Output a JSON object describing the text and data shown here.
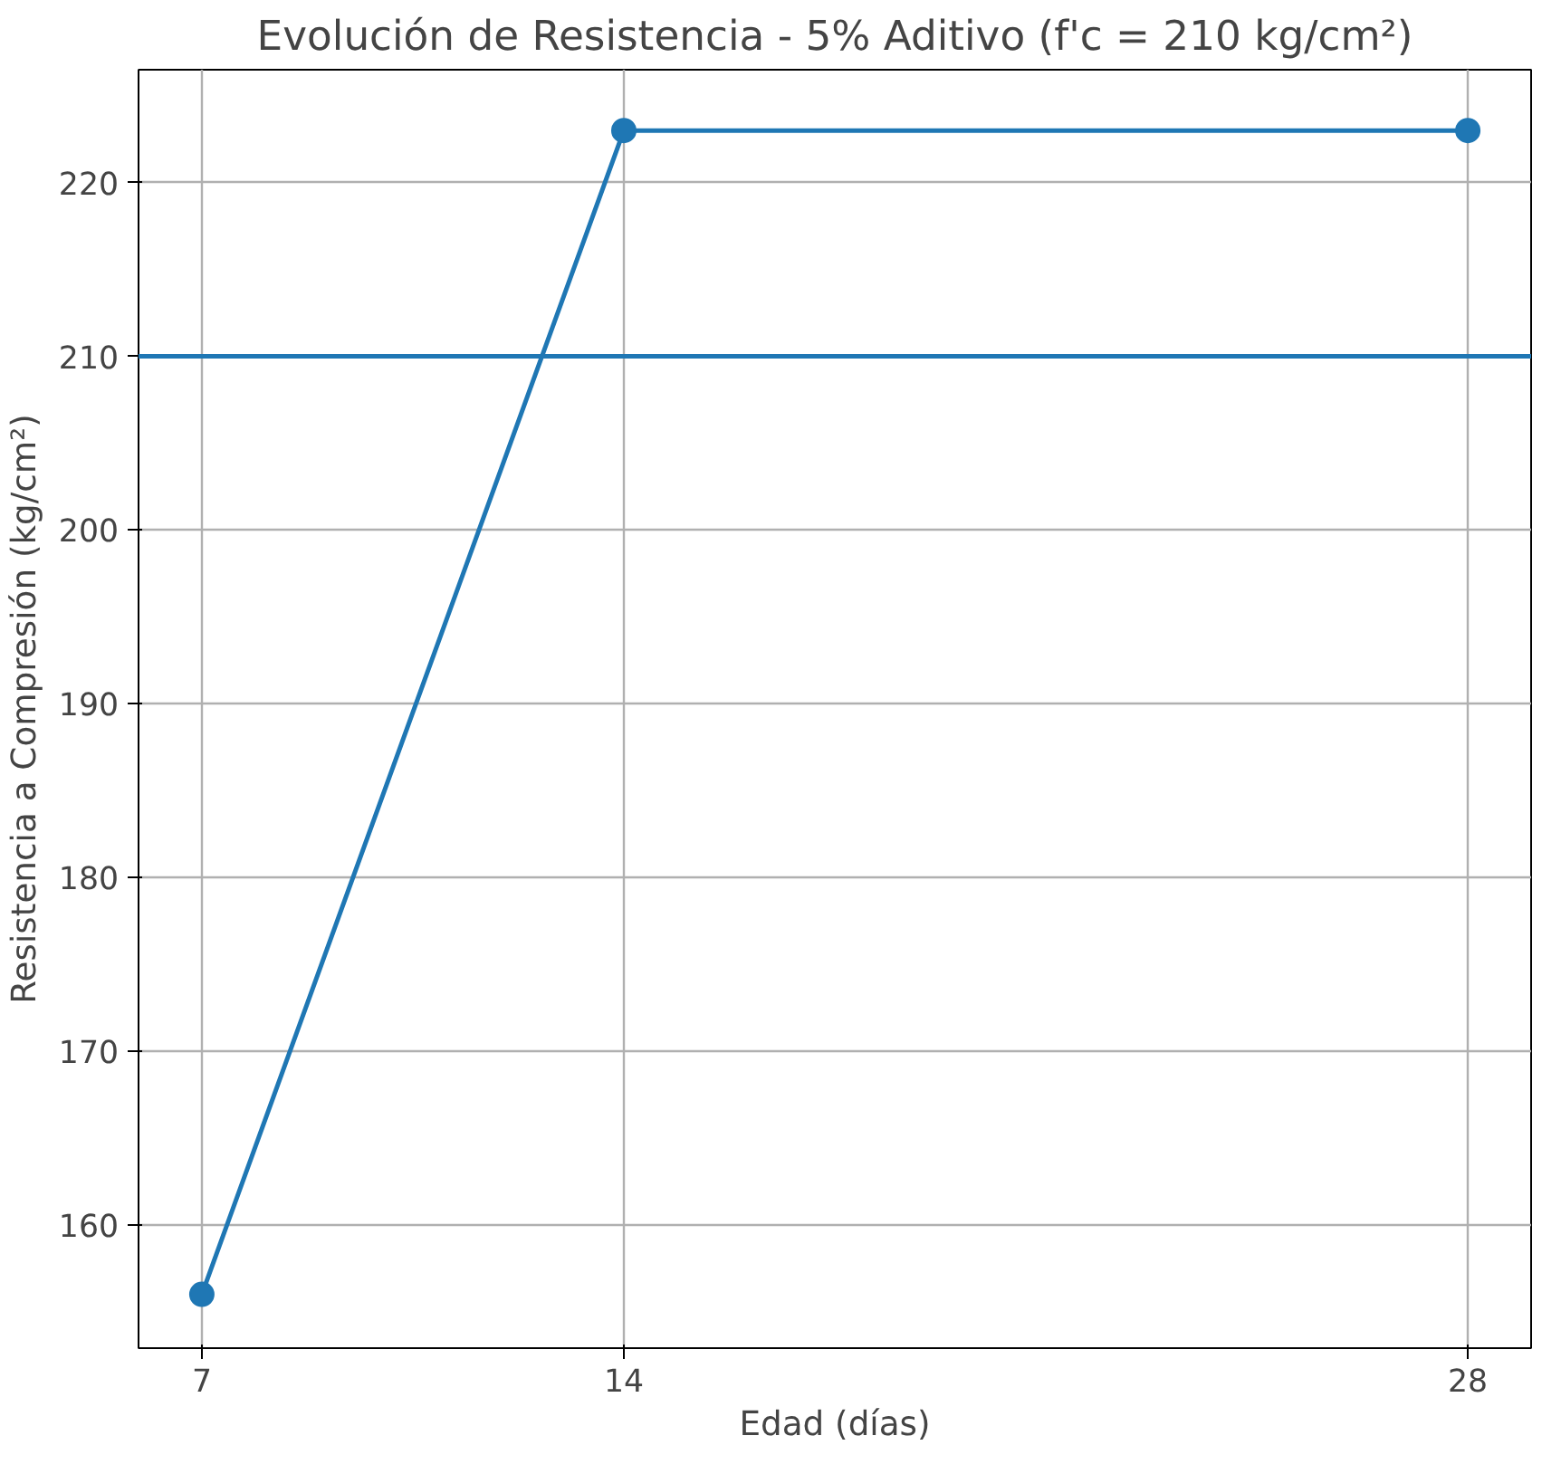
{
  "chart_data": {
    "type": "line",
    "title": "Evolución de Resistencia - 5% Aditivo (f'c = 210 kg/cm²)",
    "xlabel": "Edad (días)",
    "ylabel": "Resistencia a Compresión (kg/cm²)",
    "x": [
      7,
      14,
      28
    ],
    "series": [
      {
        "color": "#1f77b4",
        "values": [
          156,
          223,
          223
        ]
      }
    ],
    "xlim": [
      5.95,
      29.05
    ],
    "ylim": [
      152.9,
      226.5
    ],
    "xticks": [
      7,
      14,
      28
    ],
    "yticks": [
      160,
      170,
      180,
      190,
      200,
      210,
      220
    ],
    "ref_lines": [
      {
        "axis": "y",
        "value": 210,
        "color": "#1f77b4"
      }
    ],
    "grid": true,
    "marker": "circle",
    "line_style": "solid"
  }
}
